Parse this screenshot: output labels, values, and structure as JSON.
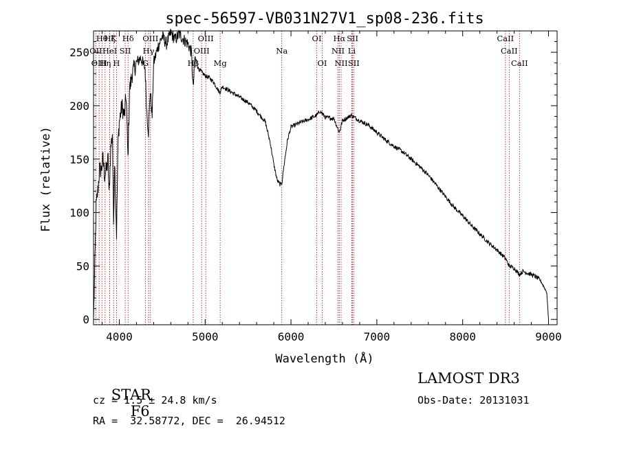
{
  "chart_data": {
    "type": "line",
    "title": "spec-56597-VB031N27V1_sp08-236.fits",
    "xlabel": "Wavelength (Å)",
    "ylabel": "Flux (relative)",
    "xlim": [
      3700,
      9100
    ],
    "ylim": [
      -5,
      270
    ],
    "xticks": [
      {
        "value": 4000,
        "label": "4000"
      },
      {
        "value": 5000,
        "label": "5000"
      },
      {
        "value": 6000,
        "label": "6000"
      },
      {
        "value": 7000,
        "label": "7000"
      },
      {
        "value": 8000,
        "label": "8000"
      },
      {
        "value": 9000,
        "label": "9000"
      }
    ],
    "yticks": [
      {
        "value": 0,
        "label": "0"
      },
      {
        "value": 50,
        "label": "50"
      },
      {
        "value": 100,
        "label": "100"
      },
      {
        "value": 150,
        "label": "150"
      },
      {
        "value": 200,
        "label": "200"
      },
      {
        "value": 250,
        "label": "250"
      }
    ],
    "line_color": "#000000",
    "marker_color": "#b00000",
    "spectrum_anchors": [
      [
        3700,
        0
      ],
      [
        3715,
        50
      ],
      [
        3730,
        105
      ],
      [
        3750,
        120
      ],
      [
        3770,
        140
      ],
      [
        3790,
        140
      ],
      [
        3810,
        150
      ],
      [
        3830,
        135
      ],
      [
        3850,
        140
      ],
      [
        3870,
        150
      ],
      [
        3880,
        115
      ],
      [
        3900,
        160
      ],
      [
        3920,
        175
      ],
      [
        3933,
        90
      ],
      [
        3945,
        150
      ],
      [
        3968,
        80
      ],
      [
        3985,
        165
      ],
      [
        4000,
        185
      ],
      [
        4030,
        200
      ],
      [
        4060,
        190
      ],
      [
        4080,
        210
      ],
      [
        4101,
        150
      ],
      [
        4120,
        215
      ],
      [
        4150,
        230
      ],
      [
        4200,
        240
      ],
      [
        4250,
        245
      ],
      [
        4300,
        235
      ],
      [
        4320,
        195
      ],
      [
        4340,
        175
      ],
      [
        4360,
        215
      ],
      [
        4383,
        190
      ],
      [
        4400,
        240
      ],
      [
        4450,
        255
      ],
      [
        4500,
        265
      ],
      [
        4550,
        258
      ],
      [
        4600,
        268
      ],
      [
        4650,
        262
      ],
      [
        4700,
        267
      ],
      [
        4750,
        262
      ],
      [
        4800,
        258
      ],
      [
        4840,
        250
      ],
      [
        4861,
        215
      ],
      [
        4880,
        245
      ],
      [
        4920,
        235
      ],
      [
        4950,
        232
      ],
      [
        5000,
        228
      ],
      [
        5050,
        226
      ],
      [
        5100,
        222
      ],
      [
        5170,
        212
      ],
      [
        5200,
        218
      ],
      [
        5300,
        213
      ],
      [
        5400,
        208
      ],
      [
        5500,
        203
      ],
      [
        5600,
        195
      ],
      [
        5700,
        185
      ],
      [
        5760,
        165
      ],
      [
        5800,
        145
      ],
      [
        5840,
        130
      ],
      [
        5875,
        126
      ],
      [
        5895,
        128
      ],
      [
        5920,
        145
      ],
      [
        5960,
        168
      ],
      [
        6000,
        180
      ],
      [
        6100,
        184
      ],
      [
        6200,
        187
      ],
      [
        6300,
        191
      ],
      [
        6340,
        195
      ],
      [
        6400,
        189
      ],
      [
        6500,
        188
      ],
      [
        6563,
        175
      ],
      [
        6600,
        186
      ],
      [
        6700,
        191
      ],
      [
        6800,
        186
      ],
      [
        6900,
        182
      ],
      [
        7000,
        175
      ],
      [
        7100,
        168
      ],
      [
        7200,
        162
      ],
      [
        7300,
        157
      ],
      [
        7400,
        150
      ],
      [
        7500,
        143
      ],
      [
        7600,
        135
      ],
      [
        7700,
        125
      ],
      [
        7800,
        115
      ],
      [
        7900,
        105
      ],
      [
        8000,
        97
      ],
      [
        8100,
        88
      ],
      [
        8200,
        80
      ],
      [
        8300,
        72
      ],
      [
        8400,
        65
      ],
      [
        8500,
        57
      ],
      [
        8542,
        50
      ],
      [
        8600,
        48
      ],
      [
        8662,
        42
      ],
      [
        8700,
        45
      ],
      [
        8800,
        42
      ],
      [
        8850,
        40
      ],
      [
        8900,
        37
      ],
      [
        8950,
        30
      ],
      [
        8980,
        25
      ],
      [
        9000,
        0
      ]
    ],
    "lines": [
      {
        "name": "Hθ",
        "wave": 3798,
        "row": 0
      },
      {
        "name": "OII",
        "wave": 3727,
        "row": 1
      },
      {
        "name": "OIII",
        "wave": 3765,
        "row": 2
      },
      {
        "name": "Hη",
        "wave": 3835,
        "row": 2
      },
      {
        "name": "Hζ",
        "wave": 3889,
        "row": 0
      },
      {
        "name": "HeI",
        "wave": 3889,
        "row": 1
      },
      {
        "name": "K",
        "wave": 3934,
        "row": 0
      },
      {
        "name": "SII",
        "wave": 4069,
        "row": 1
      },
      {
        "name": "H",
        "wave": 3968,
        "row": 2
      },
      {
        "name": "Hδ",
        "wave": 4102,
        "row": 0
      },
      {
        "name": "OIII",
        "wave": 4363,
        "row": 0
      },
      {
        "name": "Hγ",
        "wave": 4341,
        "row": 1
      },
      {
        "name": "G",
        "wave": 4305,
        "row": 2
      },
      {
        "name": "OIII",
        "wave": 5007,
        "row": 0
      },
      {
        "name": "OIII",
        "wave": 4959,
        "row": 1
      },
      {
        "name": "Hβ",
        "wave": 4861,
        "row": 2
      },
      {
        "name": "Mg",
        "wave": 5175,
        "row": 2
      },
      {
        "name": "Na",
        "wave": 5893,
        "row": 1
      },
      {
        "name": "OI",
        "wave": 6300,
        "row": 0
      },
      {
        "name": "OI",
        "wave": 6364,
        "row": 2
      },
      {
        "name": "Hα",
        "wave": 6563,
        "row": 0
      },
      {
        "name": "NII",
        "wave": 6548,
        "row": 1
      },
      {
        "name": "NII",
        "wave": 6584,
        "row": 2
      },
      {
        "name": "SII",
        "wave": 6717,
        "row": 0
      },
      {
        "name": "Li",
        "wave": 6708,
        "row": 1
      },
      {
        "name": "SII",
        "wave": 6731,
        "row": 2
      },
      {
        "name": "CaII",
        "wave": 8498,
        "row": 0
      },
      {
        "name": "CaII",
        "wave": 8542,
        "row": 1
      },
      {
        "name": "CaII",
        "wave": 8662,
        "row": 2
      }
    ]
  },
  "info": {
    "class_label": "STAR",
    "subclass_label": "F6",
    "survey": "LAMOST DR3",
    "cz": "cz = 1.5 ± 24.8 km/s",
    "obs_date": "Obs-Date: 20131031",
    "coords": "RA =  32.58772, DEC =  26.94512"
  }
}
